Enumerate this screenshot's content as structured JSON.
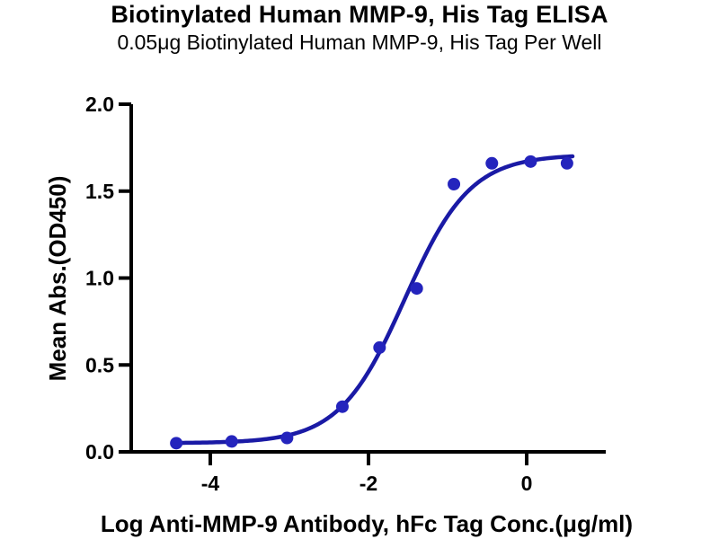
{
  "chart_data": {
    "type": "scatter",
    "title": "Biotinylated Human MMP-9, His Tag ELISA",
    "subtitle": "0.05μg Biotinylated Human MMP-9, His Tag Per Well",
    "xlabel": "Log Anti-MMP-9 Antibody, hFc Tag Conc.(μg/ml)",
    "ylabel": "Mean Abs.(OD450)",
    "xlim": [
      -5,
      1
    ],
    "ylim": [
      0,
      2
    ],
    "xticks": [
      -4,
      -2,
      0
    ],
    "xtick_labels": [
      "-4",
      "-2",
      "0"
    ],
    "yticks": [
      0,
      0.5,
      1.0,
      1.5,
      2.0
    ],
    "ytick_labels": [
      "0.0",
      "0.5",
      "1.0",
      "1.5",
      "2.0"
    ],
    "grid": false,
    "legend": "none",
    "colors": {
      "points": "#2424bd",
      "curve": "#1a1aa5",
      "axis": "#000000",
      "background": "#ffffff"
    },
    "points": {
      "x": [
        -4.43,
        -3.73,
        -3.03,
        -2.33,
        -1.86,
        -1.39,
        -0.92,
        -0.44,
        0.05,
        0.51
      ],
      "y": [
        0.05,
        0.06,
        0.08,
        0.26,
        0.6,
        0.94,
        1.54,
        1.66,
        1.67,
        1.66
      ],
      "radius": 7
    },
    "curve_fit": {
      "model": "4PL sigmoid",
      "bottom": 0.05,
      "top": 1.71,
      "log_ec50": -1.54,
      "hill": 1.05,
      "x_start": -4.43,
      "x_end": 0.6,
      "stroke_width": 4.5
    }
  }
}
